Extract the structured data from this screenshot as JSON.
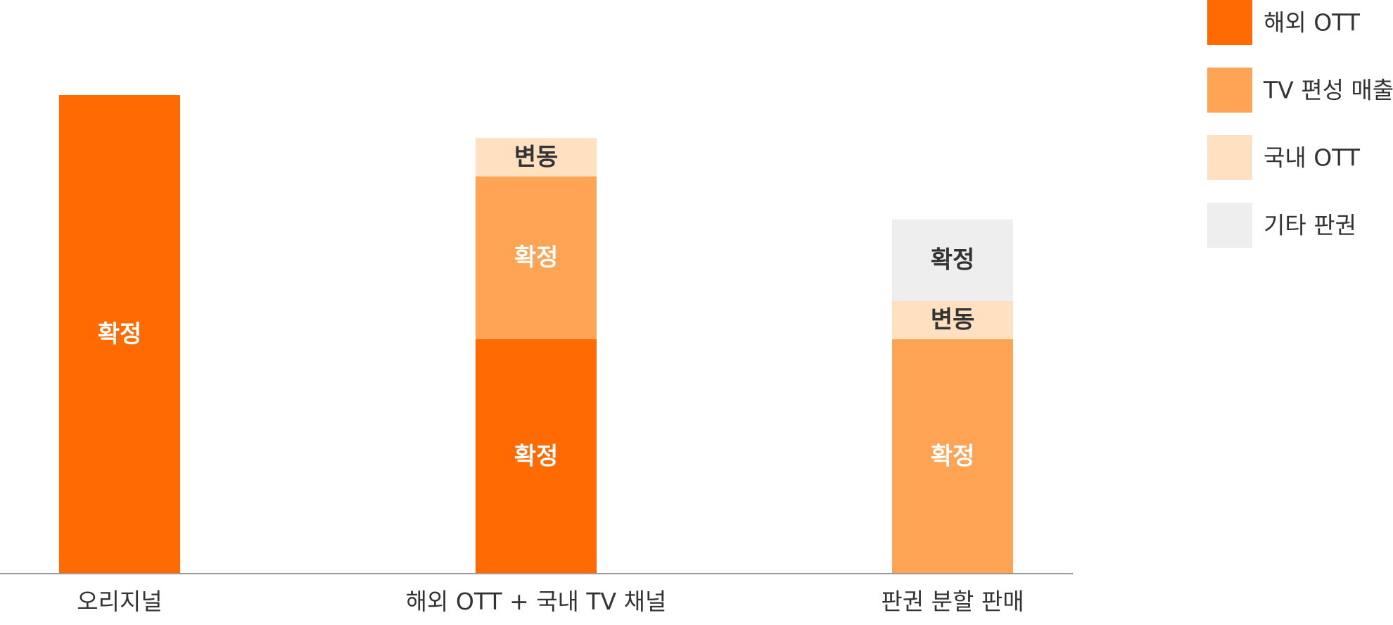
{
  "chart_data": {
    "type": "bar",
    "stacked": true,
    "title": "",
    "xlabel": "",
    "ylabel": "",
    "ylim": [
      0,
      100
    ],
    "grid": false,
    "legend_position": "top-right",
    "categories": [
      "오리지널",
      "해외 OTT + 국내 TV 채널",
      "판권 분할 판매"
    ],
    "series": [
      {
        "name": "해외 OTT",
        "color": "#FF6B00",
        "values": [
          100,
          49,
          0
        ],
        "labels": [
          "확정",
          "확정",
          ""
        ],
        "label_colors": [
          "#ffffff",
          "#ffffff",
          "#ffffff"
        ]
      },
      {
        "name": "TV 편성 매출",
        "color": "#FFA455",
        "values": [
          0,
          34,
          49
        ],
        "labels": [
          "",
          "확정",
          "확정"
        ],
        "label_colors": [
          "#ffffff",
          "#ffffff",
          "#ffffff"
        ]
      },
      {
        "name": "국내 OTT",
        "color": "#FFE1C2",
        "values": [
          0,
          8,
          8
        ],
        "labels": [
          "",
          "변동",
          "변동"
        ],
        "label_colors": [
          "#333333",
          "#333333",
          "#333333"
        ]
      },
      {
        "name": "기타 판권",
        "color": "#EEEEEE",
        "values": [
          0,
          0,
          17
        ],
        "labels": [
          "",
          "",
          "확정"
        ],
        "label_colors": [
          "#333333",
          "#333333",
          "#333333"
        ]
      }
    ],
    "axis_color": "#999999"
  }
}
